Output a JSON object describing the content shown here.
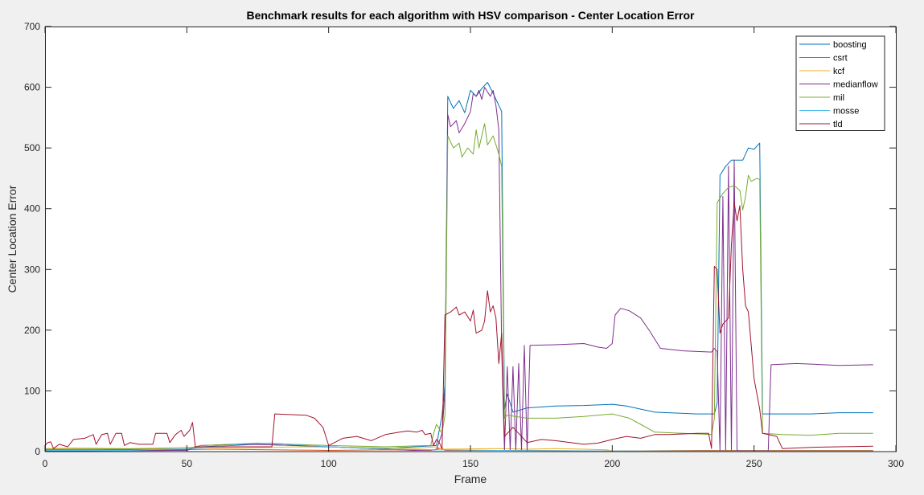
{
  "chart_data": {
    "type": "line",
    "title": "Benchmark results for each algorithm with HSV comparison - Center Location Error",
    "xlabel": "Frame",
    "ylabel": "Center Location Error",
    "xlim": [
      0,
      300
    ],
    "ylim": [
      0,
      700
    ],
    "xticks": [
      0,
      50,
      100,
      150,
      200,
      250,
      300
    ],
    "yticks": [
      0,
      100,
      200,
      300,
      400,
      500,
      600,
      700
    ],
    "grid": false,
    "legend_position": "top-right",
    "series": [
      {
        "name": "boosting",
        "color": "#0072BD",
        "points": [
          [
            0,
            2
          ],
          [
            50,
            3
          ],
          [
            55,
            8
          ],
          [
            75,
            12
          ],
          [
            100,
            8
          ],
          [
            120,
            5
          ],
          [
            138,
            10
          ],
          [
            140,
            60
          ],
          [
            141,
            110
          ],
          [
            142,
            585
          ],
          [
            144,
            565
          ],
          [
            146,
            578
          ],
          [
            148,
            558
          ],
          [
            150,
            595
          ],
          [
            152,
            585
          ],
          [
            154,
            598
          ],
          [
            156,
            608
          ],
          [
            158,
            590
          ],
          [
            160,
            570
          ],
          [
            161,
            560
          ],
          [
            162,
            70
          ],
          [
            163,
            95
          ],
          [
            165,
            65
          ],
          [
            170,
            72
          ],
          [
            180,
            75
          ],
          [
            190,
            76
          ],
          [
            200,
            78
          ],
          [
            205,
            75
          ],
          [
            210,
            70
          ],
          [
            215,
            65
          ],
          [
            230,
            62
          ],
          [
            236,
            62
          ],
          [
            237,
            80
          ],
          [
            238,
            455
          ],
          [
            240,
            470
          ],
          [
            242,
            480
          ],
          [
            246,
            480
          ],
          [
            248,
            500
          ],
          [
            250,
            498
          ],
          [
            252,
            508
          ],
          [
            253,
            62
          ],
          [
            270,
            62
          ],
          [
            280,
            64
          ],
          [
            292,
            64
          ]
        ]
      },
      {
        "name": "csrt",
        "color": "#D95319",
        "points": [
          [
            0,
            3
          ],
          [
            20,
            4
          ],
          [
            40,
            3
          ],
          [
            60,
            4
          ],
          [
            80,
            3
          ],
          [
            100,
            2
          ],
          [
            120,
            3
          ],
          [
            136,
            2
          ],
          [
            140,
            6
          ],
          [
            141,
            2
          ],
          [
            160,
            2
          ],
          [
            170,
            2
          ],
          [
            200,
            1
          ],
          [
            230,
            2
          ],
          [
            260,
            2
          ],
          [
            292,
            2
          ]
        ]
      },
      {
        "name": "kcf",
        "color": "#EDB120",
        "points": [
          [
            0,
            5
          ],
          [
            10,
            6
          ],
          [
            30,
            5
          ],
          [
            50,
            7
          ],
          [
            70,
            6
          ],
          [
            90,
            8
          ],
          [
            110,
            7
          ],
          [
            130,
            5
          ],
          [
            138,
            8
          ],
          [
            140,
            4
          ],
          [
            160,
            5
          ],
          [
            170,
            4
          ],
          [
            180,
            5
          ],
          [
            190,
            4
          ],
          [
            198,
            3
          ],
          [
            200,
            1
          ],
          [
            260,
            1
          ],
          [
            292,
            1
          ]
        ]
      },
      {
        "name": "medianflow",
        "color": "#7E2F8E",
        "points": [
          [
            0,
            1
          ],
          [
            50,
            2
          ],
          [
            55,
            10
          ],
          [
            70,
            12
          ],
          [
            90,
            10
          ],
          [
            110,
            6
          ],
          [
            130,
            2
          ],
          [
            138,
            3
          ],
          [
            140,
            30
          ],
          [
            141,
            100
          ],
          [
            142,
            555
          ],
          [
            143,
            535
          ],
          [
            145,
            545
          ],
          [
            146,
            525
          ],
          [
            148,
            540
          ],
          [
            150,
            560
          ],
          [
            151,
            590
          ],
          [
            152,
            585
          ],
          [
            153,
            595
          ],
          [
            154,
            580
          ],
          [
            155,
            600
          ],
          [
            157,
            585
          ],
          [
            158,
            595
          ],
          [
            159,
            570
          ],
          [
            160,
            530
          ],
          [
            161,
            170
          ],
          [
            162,
            2
          ],
          [
            163,
            140
          ],
          [
            164,
            2
          ],
          [
            165,
            140
          ],
          [
            166,
            2
          ],
          [
            167,
            145
          ],
          [
            168,
            2
          ],
          [
            169,
            175
          ],
          [
            170,
            1
          ],
          [
            171,
            175
          ],
          [
            180,
            176
          ],
          [
            190,
            178
          ],
          [
            195,
            172
          ],
          [
            198,
            170
          ],
          [
            200,
            178
          ],
          [
            201,
            225
          ],
          [
            203,
            236
          ],
          [
            206,
            232
          ],
          [
            210,
            220
          ],
          [
            213,
            200
          ],
          [
            217,
            170
          ],
          [
            225,
            166
          ],
          [
            235,
            164
          ],
          [
            236,
            170
          ],
          [
            237,
            165
          ],
          [
            238,
            2
          ],
          [
            239,
            420
          ],
          [
            240,
            2
          ],
          [
            241,
            470
          ],
          [
            242,
            2
          ],
          [
            243,
            480
          ],
          [
            244,
            2
          ],
          [
            245,
            1
          ],
          [
            255,
            1
          ],
          [
            256,
            143
          ],
          [
            265,
            145
          ],
          [
            280,
            142
          ],
          [
            292,
            143
          ]
        ]
      },
      {
        "name": "mil",
        "color": "#77AC30",
        "points": [
          [
            0,
            4
          ],
          [
            50,
            5
          ],
          [
            55,
            10
          ],
          [
            75,
            14
          ],
          [
            100,
            10
          ],
          [
            120,
            8
          ],
          [
            136,
            10
          ],
          [
            137,
            30
          ],
          [
            138,
            45
          ],
          [
            140,
            30
          ],
          [
            141,
            60
          ],
          [
            142,
            520
          ],
          [
            144,
            500
          ],
          [
            146,
            508
          ],
          [
            147,
            485
          ],
          [
            149,
            500
          ],
          [
            151,
            490
          ],
          [
            152,
            530
          ],
          [
            153,
            500
          ],
          [
            155,
            540
          ],
          [
            156,
            505
          ],
          [
            158,
            520
          ],
          [
            160,
            490
          ],
          [
            161,
            470
          ],
          [
            162,
            55
          ],
          [
            163,
            60
          ],
          [
            170,
            55
          ],
          [
            180,
            55
          ],
          [
            190,
            58
          ],
          [
            200,
            62
          ],
          [
            206,
            55
          ],
          [
            210,
            45
          ],
          [
            215,
            32
          ],
          [
            225,
            30
          ],
          [
            235,
            28
          ],
          [
            236,
            55
          ],
          [
            237,
            410
          ],
          [
            239,
            425
          ],
          [
            241,
            435
          ],
          [
            243,
            438
          ],
          [
            245,
            430
          ],
          [
            246,
            398
          ],
          [
            247,
            420
          ],
          [
            248,
            455
          ],
          [
            249,
            445
          ],
          [
            251,
            450
          ],
          [
            252,
            448
          ],
          [
            253,
            30
          ],
          [
            260,
            28
          ],
          [
            270,
            27
          ],
          [
            280,
            30
          ],
          [
            292,
            30
          ]
        ]
      },
      {
        "name": "mosse",
        "color": "#4DBEEE",
        "points": [
          [
            0,
            2
          ],
          [
            30,
            2
          ],
          [
            55,
            6
          ],
          [
            70,
            13
          ],
          [
            80,
            14
          ],
          [
            100,
            8
          ],
          [
            120,
            4
          ],
          [
            138,
            3
          ],
          [
            160,
            2
          ],
          [
            200,
            1
          ],
          [
            292,
            1
          ]
        ]
      },
      {
        "name": "tld",
        "color": "#A2142F",
        "points": [
          [
            0,
            10
          ],
          [
            1,
            15
          ],
          [
            2,
            16
          ],
          [
            3,
            5
          ],
          [
            5,
            12
          ],
          [
            8,
            8
          ],
          [
            10,
            20
          ],
          [
            14,
            22
          ],
          [
            17,
            28
          ],
          [
            18,
            12
          ],
          [
            20,
            28
          ],
          [
            22,
            30
          ],
          [
            23,
            12
          ],
          [
            25,
            30
          ],
          [
            27,
            30
          ],
          [
            28,
            10
          ],
          [
            30,
            15
          ],
          [
            33,
            12
          ],
          [
            38,
            12
          ],
          [
            39,
            30
          ],
          [
            43,
            30
          ],
          [
            44,
            15
          ],
          [
            46,
            28
          ],
          [
            48,
            35
          ],
          [
            49,
            25
          ],
          [
            51,
            35
          ],
          [
            52,
            48
          ],
          [
            53,
            8
          ],
          [
            80,
            8
          ],
          [
            81,
            62
          ],
          [
            92,
            60
          ],
          [
            95,
            55
          ],
          [
            98,
            40
          ],
          [
            100,
            10
          ],
          [
            105,
            22
          ],
          [
            110,
            25
          ],
          [
            115,
            18
          ],
          [
            120,
            28
          ],
          [
            125,
            32
          ],
          [
            128,
            34
          ],
          [
            131,
            32
          ],
          [
            133,
            35
          ],
          [
            134,
            28
          ],
          [
            136,
            30
          ],
          [
            137,
            10
          ],
          [
            138,
            20
          ],
          [
            139,
            15
          ],
          [
            140,
            5
          ],
          [
            141,
            225
          ],
          [
            143,
            230
          ],
          [
            145,
            238
          ],
          [
            146,
            225
          ],
          [
            148,
            230
          ],
          [
            150,
            215
          ],
          [
            151,
            233
          ],
          [
            152,
            195
          ],
          [
            154,
            200
          ],
          [
            155,
            215
          ],
          [
            156,
            265
          ],
          [
            157,
            230
          ],
          [
            158,
            240
          ],
          [
            159,
            220
          ],
          [
            160,
            145
          ],
          [
            161,
            195
          ],
          [
            162,
            25
          ],
          [
            165,
            40
          ],
          [
            170,
            15
          ],
          [
            175,
            20
          ],
          [
            180,
            18
          ],
          [
            190,
            12
          ],
          [
            195,
            14
          ],
          [
            200,
            20
          ],
          [
            205,
            25
          ],
          [
            210,
            22
          ],
          [
            215,
            28
          ],
          [
            220,
            28
          ],
          [
            230,
            30
          ],
          [
            234,
            30
          ],
          [
            235,
            5
          ],
          [
            236,
            305
          ],
          [
            237,
            300
          ],
          [
            238,
            195
          ],
          [
            239,
            210
          ],
          [
            241,
            220
          ],
          [
            242,
            340
          ],
          [
            243,
            410
          ],
          [
            244,
            380
          ],
          [
            245,
            405
          ],
          [
            246,
            300
          ],
          [
            247,
            240
          ],
          [
            248,
            230
          ],
          [
            250,
            120
          ],
          [
            252,
            70
          ],
          [
            253,
            30
          ],
          [
            255,
            28
          ],
          [
            258,
            25
          ],
          [
            260,
            5
          ],
          [
            270,
            7
          ],
          [
            280,
            8
          ],
          [
            292,
            9
          ]
        ]
      }
    ]
  }
}
